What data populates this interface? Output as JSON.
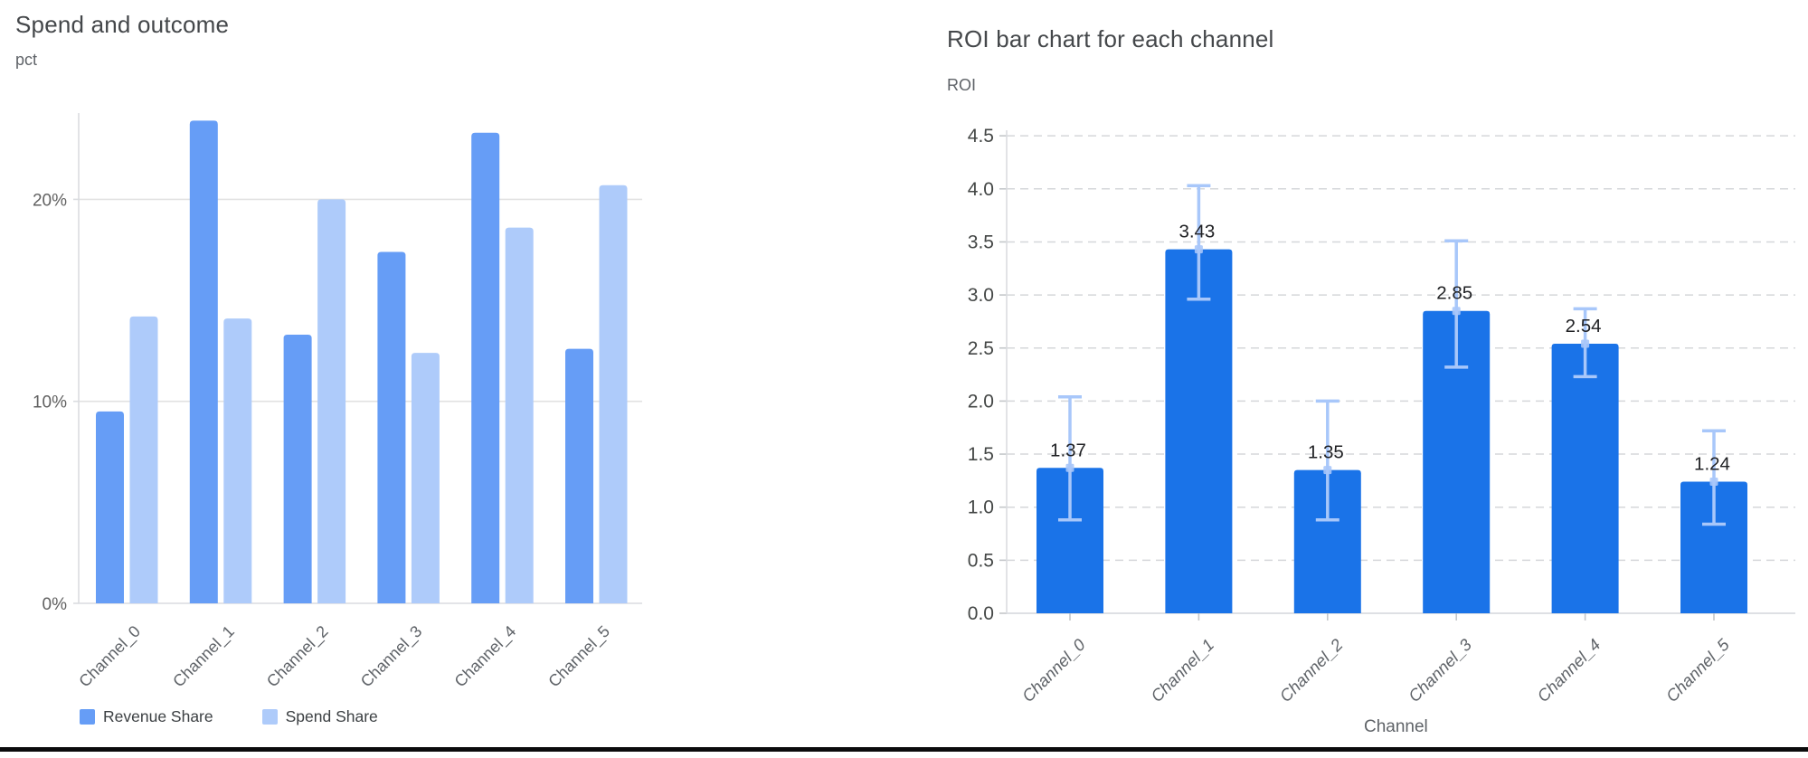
{
  "window": {
    "background_color": "#ffffff",
    "bottom_border_color": "#0b0b0c"
  },
  "chart_data": [
    {
      "id": "spend_outcome",
      "type": "bar",
      "title": "Spend and outcome",
      "value_axis_label": "pct",
      "xlabel": "",
      "categories": [
        "Channel_0",
        "Channel_1",
        "Channel_2",
        "Channel_3",
        "Channel_4",
        "Channel_5"
      ],
      "series": [
        {
          "name": "Revenue Share",
          "color": "#669df6",
          "values": [
            9.5,
            23.9,
            13.3,
            17.4,
            23.3,
            12.6
          ]
        },
        {
          "name": "Spend Share",
          "color": "#aecbfa",
          "values": [
            14.2,
            14.1,
            20.0,
            12.4,
            18.6,
            20.7
          ]
        }
      ],
      "yticks": [
        {
          "value": 0,
          "label": "0%"
        },
        {
          "value": 10,
          "label": "10%"
        },
        {
          "value": 20,
          "label": "20%"
        }
      ],
      "ylim": [
        0,
        25.5
      ],
      "grid": "solid",
      "legend_position": "bottom",
      "x_label_rotation_deg": -45
    },
    {
      "id": "roi_by_channel",
      "type": "bar",
      "title": "ROI bar chart for each channel",
      "ylabel": "ROI",
      "xlabel": "Channel",
      "categories": [
        "Channel_0",
        "Channel_1",
        "Channel_2",
        "Channel_3",
        "Channel_4",
        "Channel_5"
      ],
      "series": [
        {
          "name": "ROI",
          "color": "#1a73e8",
          "values": [
            1.37,
            3.43,
            1.35,
            2.85,
            2.54,
            1.24
          ]
        }
      ],
      "bar_labels": [
        "1.37",
        "3.43",
        "1.35",
        "2.85",
        "2.54",
        "1.24"
      ],
      "error_bars": {
        "color": "#a8c7fa",
        "low": [
          0.88,
          2.96,
          0.88,
          2.32,
          2.23,
          0.84
        ],
        "high": [
          2.04,
          4.03,
          2.0,
          3.51,
          2.87,
          1.72
        ]
      },
      "yticks": [
        {
          "value": 0.0,
          "label": "0.0"
        },
        {
          "value": 0.5,
          "label": "0.5"
        },
        {
          "value": 1.0,
          "label": "1.0"
        },
        {
          "value": 1.5,
          "label": "1.5"
        },
        {
          "value": 2.0,
          "label": "2.0"
        },
        {
          "value": 2.5,
          "label": "2.5"
        },
        {
          "value": 3.0,
          "label": "3.0"
        },
        {
          "value": 3.5,
          "label": "3.5"
        },
        {
          "value": 4.0,
          "label": "4.0"
        },
        {
          "value": 4.5,
          "label": "4.5"
        }
      ],
      "ylim": [
        0,
        4.75
      ],
      "grid": "dashed",
      "legend_position": "none",
      "x_label_rotation_deg": -45,
      "x_label_style": "italic"
    }
  ]
}
